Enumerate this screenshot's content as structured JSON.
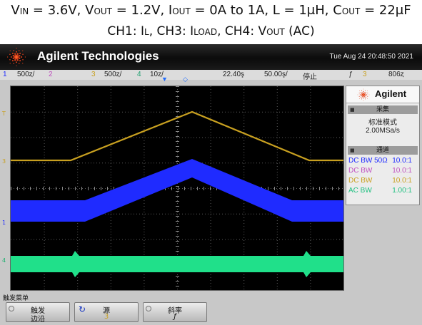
{
  "caption": {
    "line1": [
      {
        "t": "V",
        "sc": false
      },
      {
        "t": "IN",
        "sc": true
      },
      {
        "t": " = 3.6V, V",
        "sc": false
      },
      {
        "t": "OUT",
        "sc": true
      },
      {
        "t": " = 1.2V, I",
        "sc": false
      },
      {
        "t": "OUT",
        "sc": true
      },
      {
        "t": " = 0A to 1A, L = 1μH, C",
        "sc": false
      },
      {
        "t": "OUT",
        "sc": true
      },
      {
        "t": " = 22μF",
        "sc": false
      }
    ],
    "line2": [
      {
        "t": "CH1: I",
        "sc": false
      },
      {
        "t": "L",
        "sc": true
      },
      {
        "t": ", CH3: I",
        "sc": false
      },
      {
        "t": "LOAD",
        "sc": true
      },
      {
        "t": ", CH4: V",
        "sc": false
      },
      {
        "t": "OUT",
        "sc": true
      },
      {
        "t": " (AC)",
        "sc": false
      }
    ]
  },
  "brand": {
    "name": "Agilent Technologies",
    "datetime": "Tue Aug 24 20:48:50 2021"
  },
  "status": {
    "ch1_num": "1",
    "ch1_scale": "500ȥ/",
    "ch2_num": "2",
    "ch3_num": "3",
    "ch3_scale": "500ȥ/",
    "ch4_num": "4",
    "ch4_scale": "10ȥ/",
    "time_delay": "22.40ş",
    "time_scale": "50.00ş/",
    "run_state": "停止",
    "trigger_source": "3",
    "trigger_level": "806ȥ"
  },
  "colors": {
    "ch1": "#1f2bff",
    "ch2": "#c050c0",
    "ch3": "#c8a020",
    "ch4": "#20e08a",
    "grid": "#5a5a5a"
  },
  "side_panel": {
    "logo": "Agilent",
    "acq_header": "采集",
    "acq_mode": "标准模式",
    "acq_rate": "2.00MSa/s",
    "chan_header": "通道",
    "channels": [
      {
        "coupling": "DC BW 50Ω",
        "probe": "10.0:1",
        "color": "#1f2bff"
      },
      {
        "coupling": "DC BW",
        "probe": "10.0:1",
        "color": "#c050c0"
      },
      {
        "coupling": "DC BW",
        "probe": "10.0:1",
        "color": "#c8a020"
      },
      {
        "coupling": "AC BW",
        "probe": "1.00:1",
        "color": "#20c080"
      }
    ]
  },
  "softkeys": {
    "menu_title": "触发菜单",
    "trigger_type_label": "触发",
    "trigger_type_value": "边沿",
    "source_label": "源",
    "source_value": "3",
    "slope_label": "斜率",
    "slope_value": "ƒ"
  },
  "markers": {
    "ch3_marker": "T",
    "ch3_ground": "3",
    "ch1_ground": "1",
    "ch4_ground": "4"
  }
}
